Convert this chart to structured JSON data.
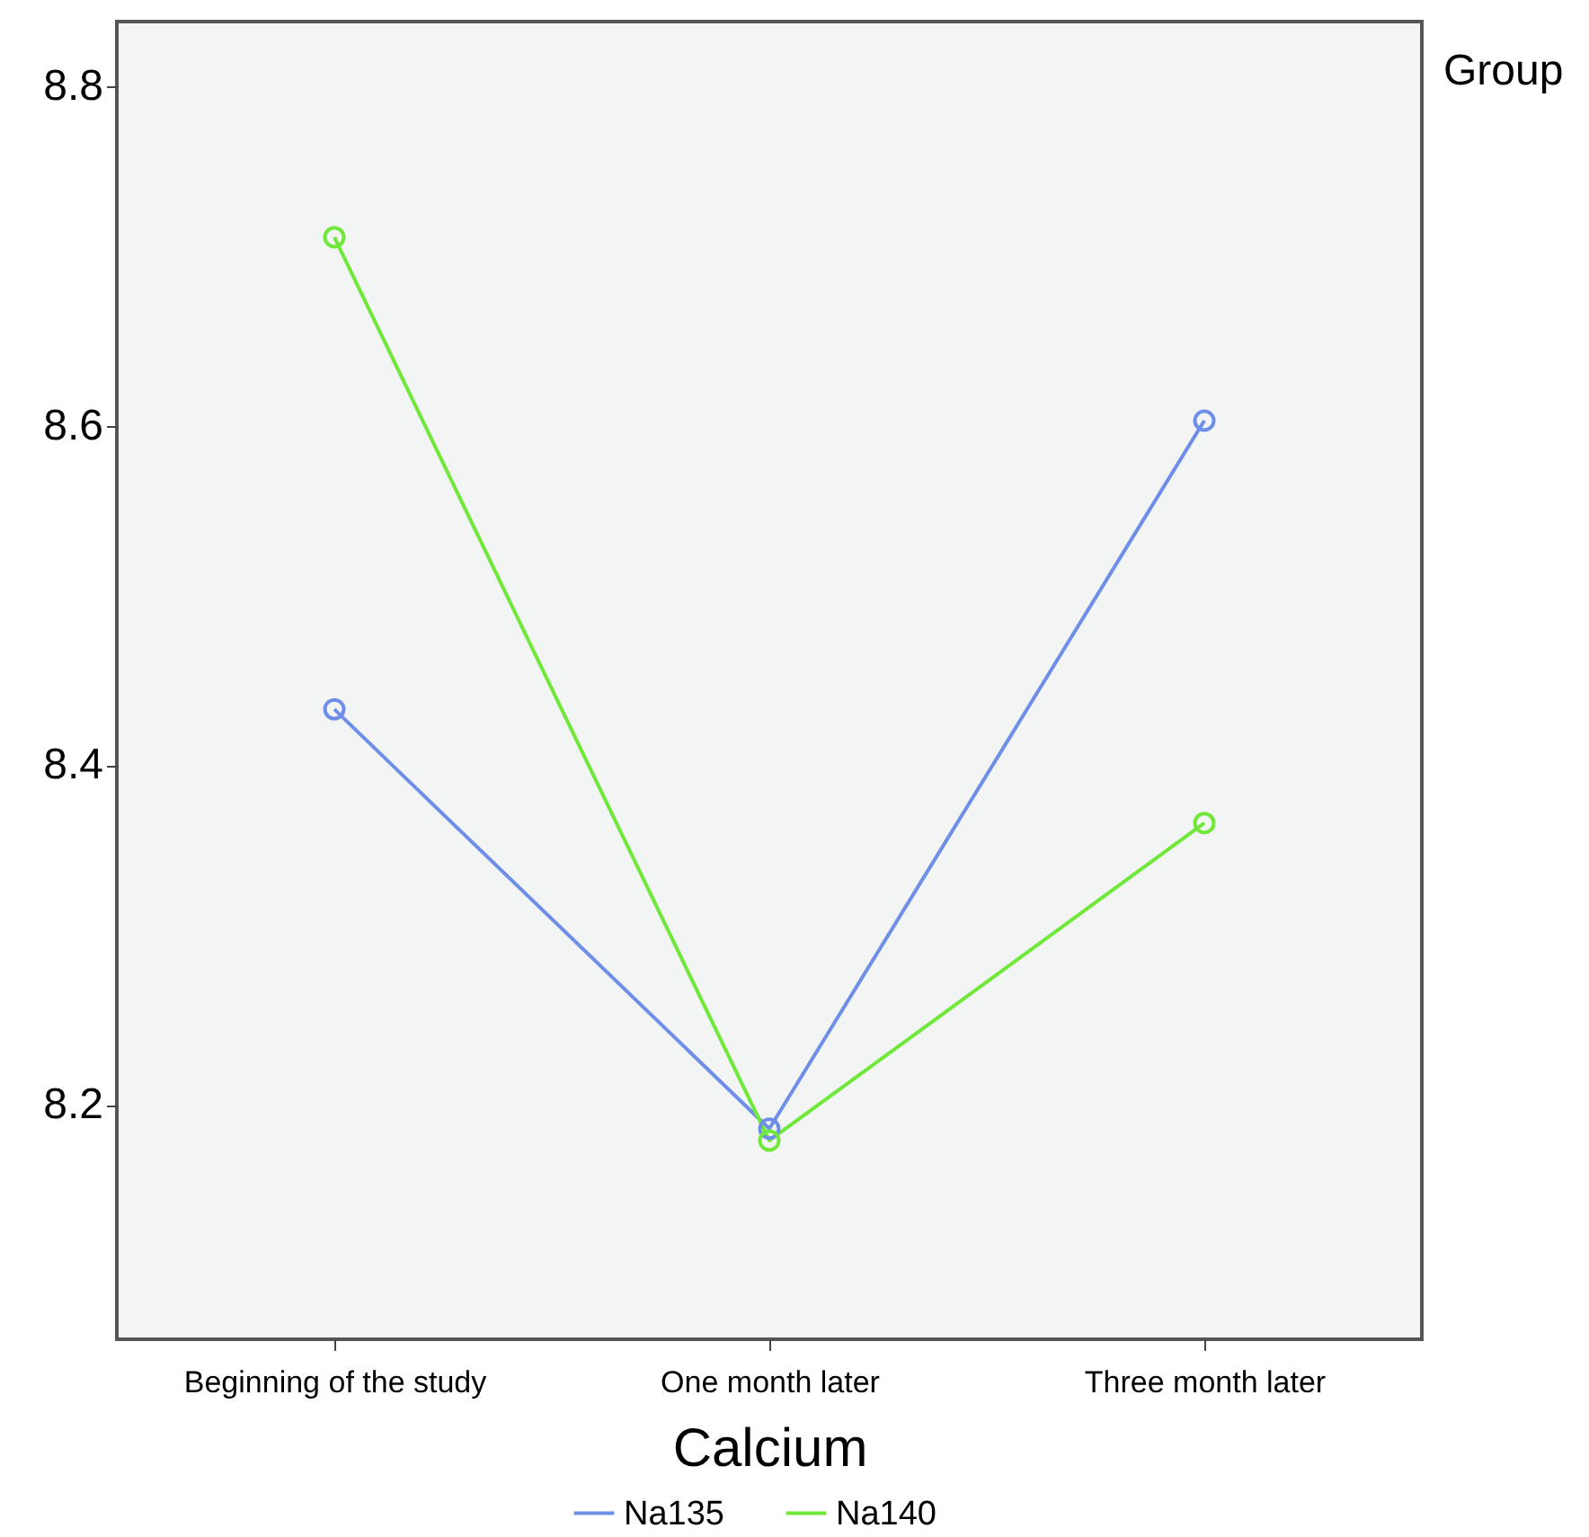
{
  "chart_data": {
    "type": "line",
    "xlabel": "Calcium",
    "legend_title": "Group",
    "categories": [
      "Beginning of the study",
      "One month later",
      "Three month later"
    ],
    "series": [
      {
        "name": "Na135",
        "color": "#6f8ee8",
        "values": [
          8.433,
          8.186,
          8.603
        ]
      },
      {
        "name": "Na140",
        "color": "#6fe83a",
        "values": [
          8.711,
          8.179,
          8.366
        ]
      }
    ],
    "ylim": [
      8.062,
      8.838
    ],
    "yticks": [
      8.2,
      8.4,
      8.6,
      8.8
    ],
    "grid": false,
    "legend": "bottom",
    "marker": "circle",
    "line_style": "solid"
  }
}
